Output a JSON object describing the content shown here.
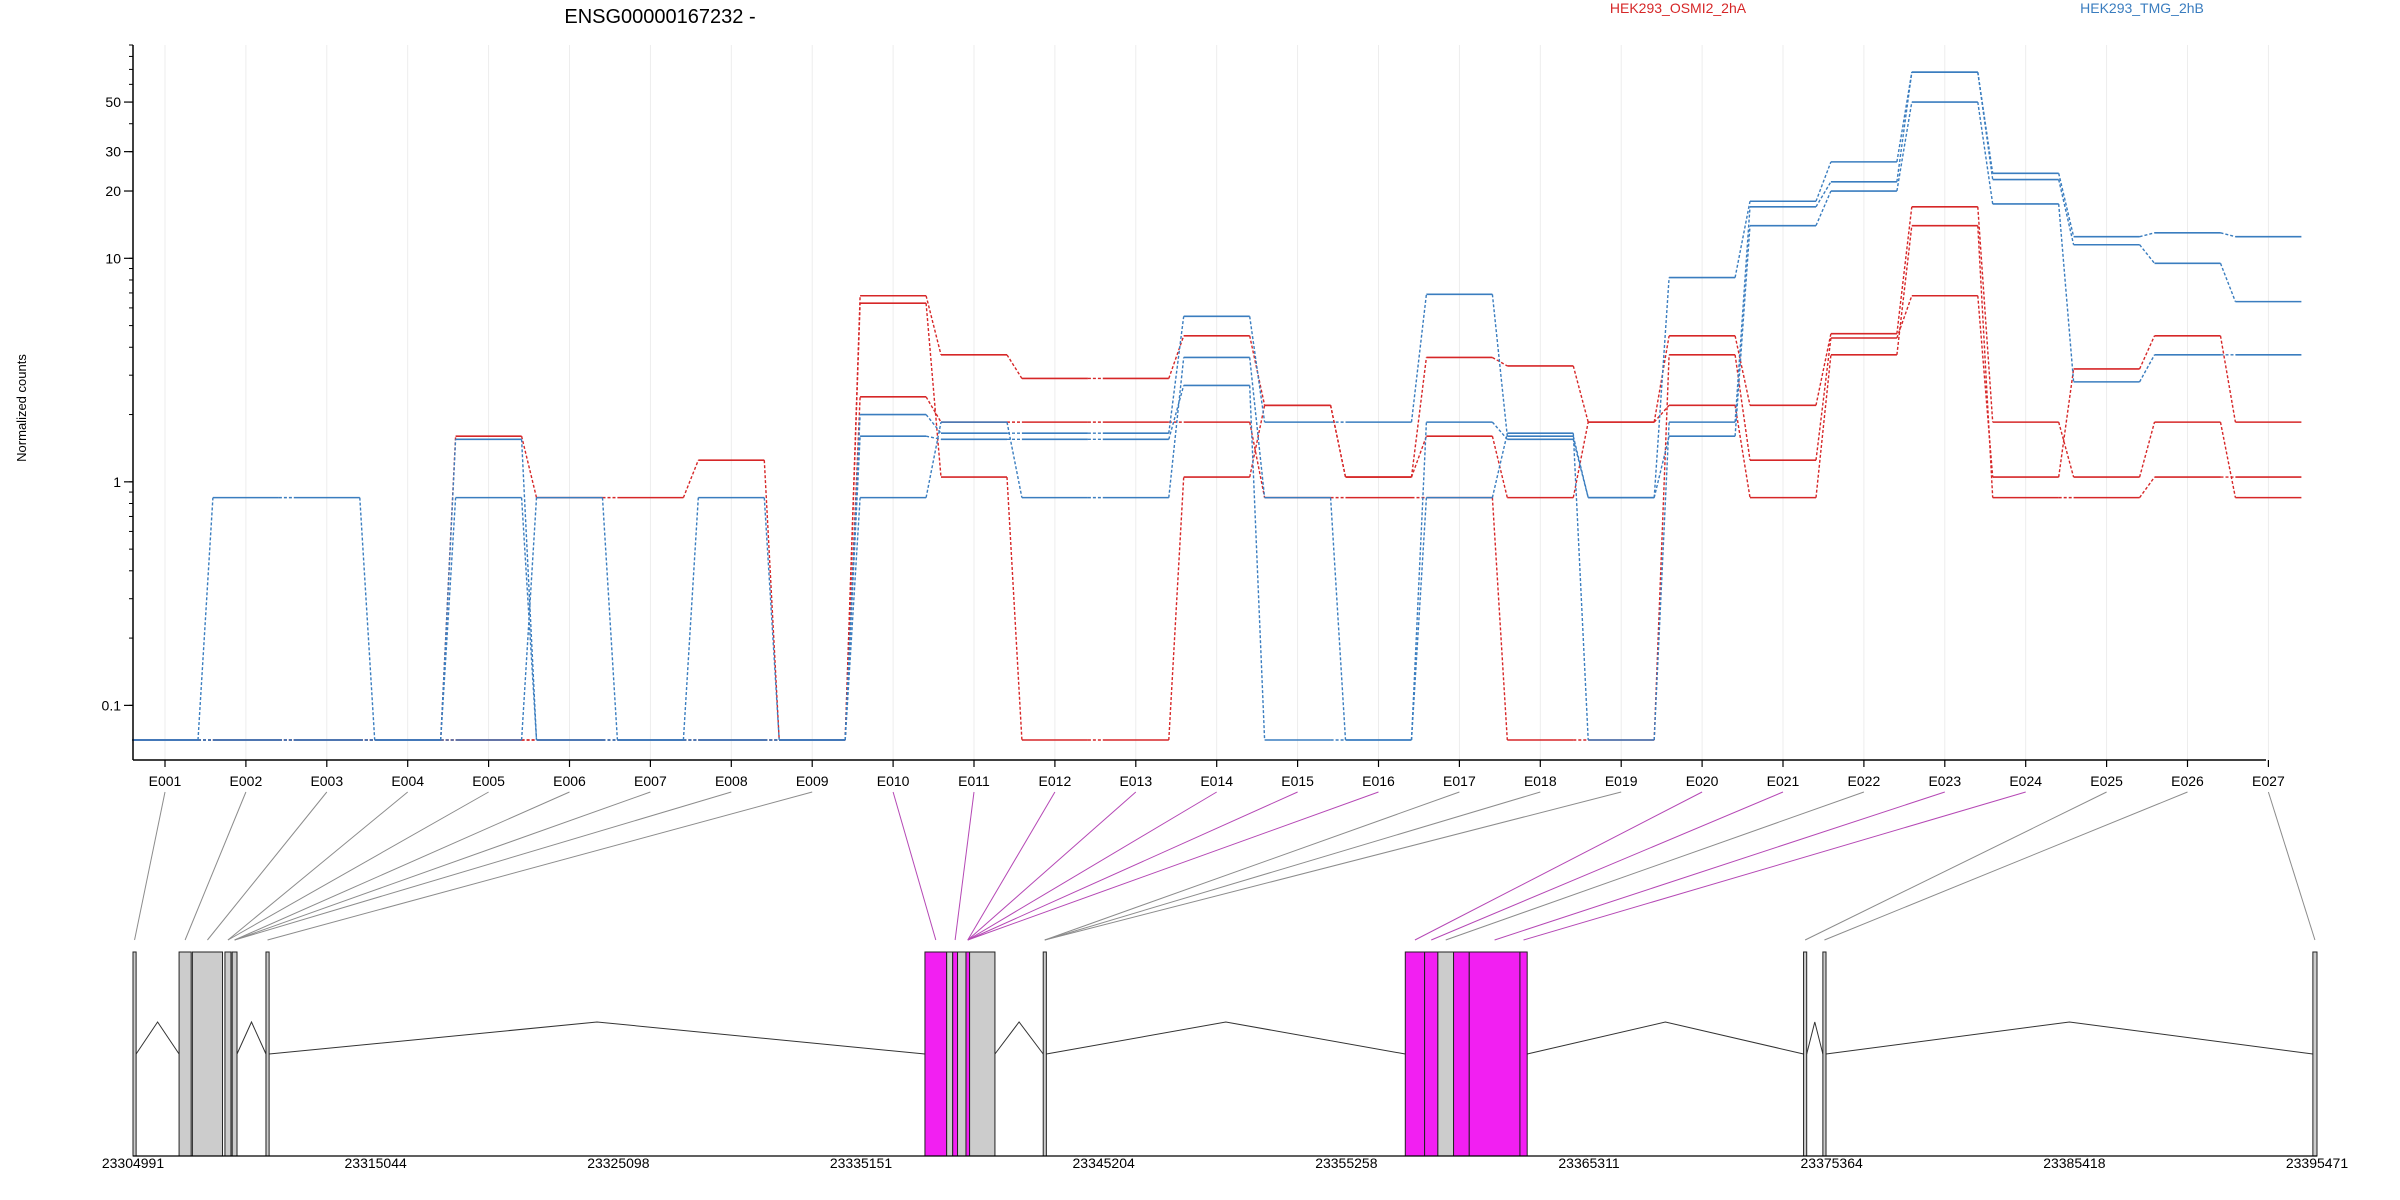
{
  "colors": {
    "condition_a": "#d62728",
    "condition_b": "#3a7dbf",
    "exon_highlight": "#f21ff2",
    "exon_plain": "#cccccc",
    "connector_plain": "#8c8c8c",
    "connector_highlight": "#b548b5",
    "grid": "#ededed",
    "axis": "#000000"
  },
  "chart_data": {
    "type": "line",
    "title": "ENSG00000167232 -",
    "ylabel": "Normalized counts",
    "yscale": "log",
    "ylim": [
      0.07,
      90
    ],
    "yticks": [
      {
        "value": 0.1,
        "label": "0.1"
      },
      {
        "value": 1,
        "label": "1"
      },
      {
        "value": 10,
        "label": "10"
      },
      {
        "value": 20,
        "label": "20"
      },
      {
        "value": 30,
        "label": "30"
      },
      {
        "value": 50,
        "label": "50"
      }
    ],
    "legend": [
      {
        "name": "HEK293_OSMI2_2hA",
        "color": "#d62728"
      },
      {
        "name": "HEK293_TMG_2hB",
        "color": "#3a7dbf"
      }
    ],
    "categories": [
      "E001",
      "E002",
      "E003",
      "E004",
      "E005",
      "E006",
      "E007",
      "E008",
      "E009",
      "E010",
      "E011",
      "E012",
      "E013",
      "E014",
      "E015",
      "E016",
      "E017",
      "E018",
      "E019",
      "E020",
      "E021",
      "E022",
      "E023",
      "E024",
      "E025",
      "E026",
      "E027"
    ],
    "series": [
      {
        "group": "condition_a",
        "values": [
          0.07,
          0.07,
          0.07,
          0.07,
          1.6,
          0.85,
          0.85,
          1.25,
          0.07,
          6.8,
          3.7,
          2.9,
          2.9,
          4.5,
          2.2,
          1.05,
          3.6,
          3.3,
          1.85,
          4.5,
          2.2,
          4.6,
          17,
          1.85,
          1.05,
          1.85,
          0.85
        ]
      },
      {
        "group": "condition_a",
        "values": [
          0.07,
          0.07,
          0.07,
          0.07,
          0.07,
          0.07,
          0.07,
          0.07,
          0.07,
          6.3,
          1.05,
          0.07,
          0.07,
          1.05,
          2.2,
          1.05,
          1.6,
          0.85,
          1.85,
          2.2,
          0.85,
          3.7,
          14,
          0.85,
          0.85,
          1.05,
          1.05
        ]
      },
      {
        "group": "condition_a",
        "values": [
          0.07,
          0.07,
          0.07,
          0.07,
          0.07,
          0.07,
          0.07,
          0.07,
          0.07,
          2.4,
          1.85,
          1.85,
          1.85,
          1.85,
          0.85,
          0.85,
          0.85,
          0.07,
          0.07,
          3.7,
          1.25,
          4.4,
          6.8,
          1.05,
          3.2,
          4.5,
          1.85
        ]
      },
      {
        "group": "condition_b",
        "values": [
          0.07,
          0.85,
          0.85,
          0.07,
          1.55,
          0.07,
          0.07,
          0.07,
          0.07,
          2.0,
          1.65,
          1.65,
          1.65,
          5.5,
          1.85,
          1.85,
          6.9,
          1.6,
          0.85,
          8.2,
          18,
          27,
          68,
          24,
          12.5,
          13,
          12.5
        ]
      },
      {
        "group": "condition_b",
        "values": [
          0.07,
          0.07,
          0.07,
          0.07,
          0.85,
          0.07,
          0.07,
          0.07,
          0.07,
          0.85,
          1.85,
          0.85,
          0.85,
          3.6,
          0.85,
          0.07,
          0.85,
          1.65,
          0.07,
          1.85,
          17,
          22,
          68,
          22.5,
          11.5,
          9.5,
          6.4
        ]
      },
      {
        "group": "condition_b",
        "values": [
          0.07,
          0.07,
          0.07,
          0.07,
          0.07,
          0.85,
          0.07,
          0.85,
          0.07,
          1.6,
          1.55,
          1.55,
          1.55,
          2.7,
          0.07,
          0.07,
          1.85,
          1.55,
          0.85,
          1.6,
          14,
          20,
          50,
          17.5,
          2.8,
          3.7,
          3.7
        ]
      }
    ],
    "genomic_axis": {
      "start": 23304991,
      "end": 23395471,
      "tick_labels": [
        "23304991",
        "23315044",
        "23325098",
        "23335151",
        "23345204",
        "23355258",
        "23365311",
        "23375364",
        "23385418",
        "23395471"
      ]
    },
    "exons": [
      {
        "id": "E001",
        "start": 23304991,
        "end": 23305120,
        "highlight": false
      },
      {
        "id": "E002",
        "start": 23306900,
        "end": 23307400,
        "highlight": false
      },
      {
        "id": "E003",
        "start": 23307450,
        "end": 23308700,
        "highlight": false
      },
      {
        "id": "E004",
        "start": 23308800,
        "end": 23309050,
        "highlight": false
      },
      {
        "id": "E005",
        "start": 23309100,
        "end": 23309300,
        "highlight": false
      },
      {
        "id": "E006",
        "start": 23310500,
        "end": 23310630,
        "highlight": false
      },
      {
        "id": "E007",
        "start": 23337800,
        "end": 23338700,
        "highlight": true
      },
      {
        "id": "E008",
        "start": 23338700,
        "end": 23338950,
        "highlight": false
      },
      {
        "id": "E009",
        "start": 23338950,
        "end": 23339150,
        "highlight": true
      },
      {
        "id": "E010",
        "start": 23339150,
        "end": 23339500,
        "highlight": false
      },
      {
        "id": "E011",
        "start": 23339500,
        "end": 23339650,
        "highlight": true
      },
      {
        "id": "E012",
        "start": 23339650,
        "end": 23340700,
        "highlight": false
      },
      {
        "id": "E013",
        "start": 23342700,
        "end": 23342830,
        "highlight": false
      },
      {
        "id": "E014",
        "start": 23357700,
        "end": 23358500,
        "highlight": true
      },
      {
        "id": "E015",
        "start": 23358500,
        "end": 23359050,
        "highlight": true
      },
      {
        "id": "E016",
        "start": 23359050,
        "end": 23359700,
        "highlight": false
      },
      {
        "id": "E017",
        "start": 23359700,
        "end": 23360350,
        "highlight": true
      },
      {
        "id": "E018",
        "start": 23360350,
        "end": 23362450,
        "highlight": true
      },
      {
        "id": "E019",
        "start": 23362450,
        "end": 23362750,
        "highlight": true
      },
      {
        "id": "E020",
        "start": 23374200,
        "end": 23374330,
        "highlight": false
      },
      {
        "id": "E021",
        "start": 23375000,
        "end": 23375130,
        "highlight": false
      },
      {
        "id": "E022",
        "start": 23395300,
        "end": 23395471,
        "highlight": false
      }
    ],
    "connections": [
      {
        "bin": "E001",
        "exon": "E001"
      },
      {
        "bin": "E002",
        "exon": "E002"
      },
      {
        "bin": "E003",
        "exon": "E003"
      },
      {
        "bin": "E004",
        "exon": "E004"
      },
      {
        "bin": "E005",
        "exon": "E004"
      },
      {
        "bin": "E006",
        "exon": "E005"
      },
      {
        "bin": "E007",
        "exon": "E005"
      },
      {
        "bin": "E008",
        "exon": "E005"
      },
      {
        "bin": "E009",
        "exon": "E006"
      },
      {
        "bin": "E010",
        "exon": "E007"
      },
      {
        "bin": "E011",
        "exon": "E009"
      },
      {
        "bin": "E012",
        "exon": "E011"
      },
      {
        "bin": "E013",
        "exon": "E011"
      },
      {
        "bin": "E014",
        "exon": "E011"
      },
      {
        "bin": "E015",
        "exon": "E011"
      },
      {
        "bin": "E016",
        "exon": "E011"
      },
      {
        "bin": "E017",
        "exon": "E013"
      },
      {
        "bin": "E018",
        "exon": "E013"
      },
      {
        "bin": "E019",
        "exon": "E013"
      },
      {
        "bin": "E020",
        "exon": "E014"
      },
      {
        "bin": "E021",
        "exon": "E015"
      },
      {
        "bin": "E022",
        "exon": "E016"
      },
      {
        "bin": "E023",
        "exon": "E018"
      },
      {
        "bin": "E024",
        "exon": "E019"
      },
      {
        "bin": "E025",
        "exon": "E020"
      },
      {
        "bin": "E026",
        "exon": "E021"
      },
      {
        "bin": "E027",
        "exon": "E022"
      }
    ]
  }
}
